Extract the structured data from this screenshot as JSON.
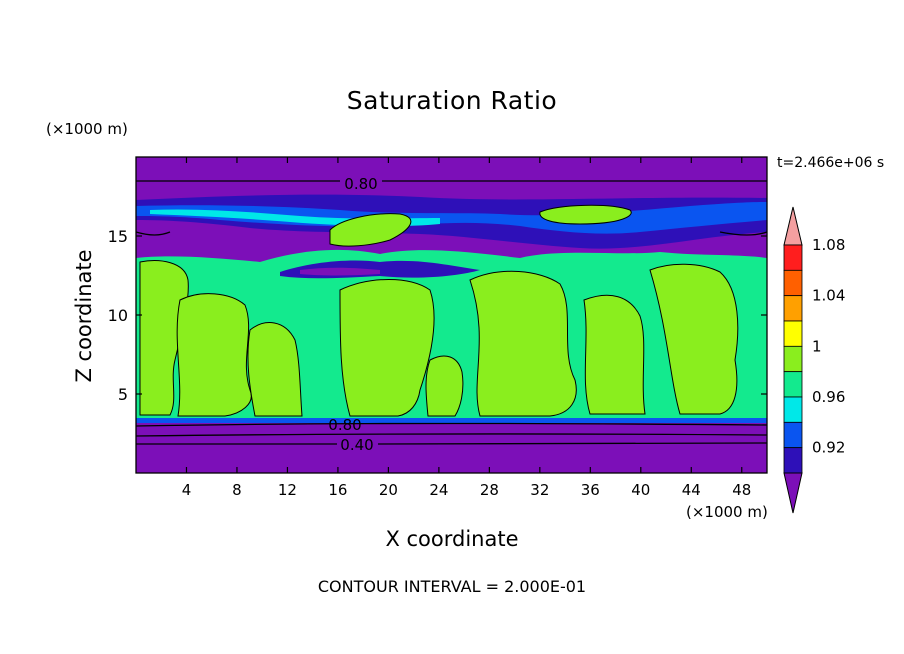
{
  "chart_data": {
    "type": "heatmap",
    "title": "Saturation Ratio",
    "xlabel": "X coordinate",
    "ylabel": "Z coordinate",
    "x_unit": "(×1000 m)",
    "y_unit": "(×1000 m)",
    "time_label": "t=2.466e+06 s",
    "footer": "CONTOUR INTERVAL = 2.000E-01",
    "xlim": [
      0,
      50
    ],
    "ylim": [
      0,
      20
    ],
    "x_ticks": [
      4,
      8,
      12,
      16,
      20,
      24,
      28,
      32,
      36,
      40,
      44,
      48
    ],
    "y_ticks": [
      5,
      10,
      15
    ],
    "contour_labels": [
      {
        "text": "0.80",
        "x": 17.3,
        "z": 18.2
      },
      {
        "text": "0.80",
        "x": 16.3,
        "z": 3.0
      },
      {
        "text": "0.40",
        "x": 17.3,
        "z": 1.8
      }
    ],
    "colorbar": {
      "levels": [
        0.92,
        0.96,
        1,
        1.04,
        1.08
      ],
      "colors": [
        "#7c0fb8",
        "#2e10b8",
        "#0a55f0",
        "#00e8e8",
        "#13ea8e",
        "#8aee1e",
        "#ffff00",
        "#ffa000",
        "#ff6000",
        "#ff1e1e",
        "#f49fa0"
      ]
    }
  }
}
